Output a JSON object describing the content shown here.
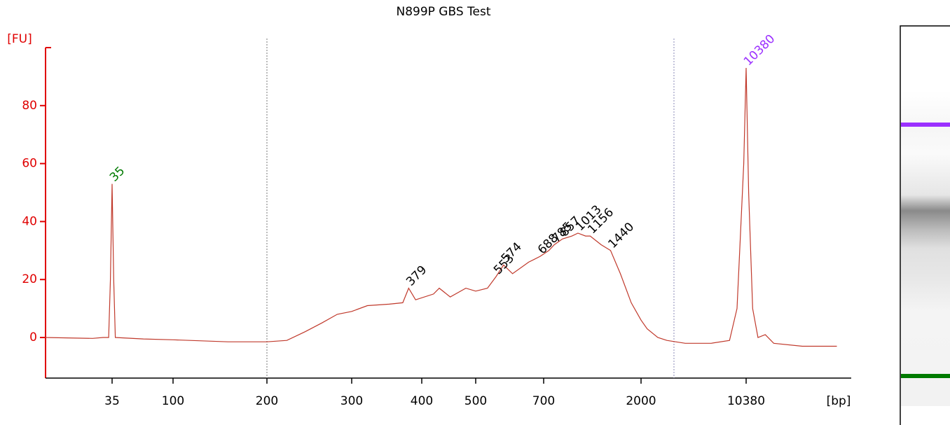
{
  "chart_data": {
    "type": "line",
    "title": "N899P GBS Test",
    "y_label": "[FU]",
    "x_label": "[bp]",
    "log_x": true,
    "color": "#c0392b",
    "axis_color": "#e00000",
    "xlim": [
      11,
      43000
    ],
    "ylim": [
      -14,
      100
    ],
    "xticks": [
      35,
      100,
      200,
      300,
      400,
      500,
      700,
      2000,
      10380
    ],
    "yticks": [
      0,
      20,
      40,
      60,
      80
    ],
    "region": [
      200,
      3350
    ],
    "x": [
      11,
      25,
      30,
      33,
      34,
      35,
      36,
      37,
      60,
      100,
      150,
      200,
      220,
      240,
      260,
      280,
      300,
      320,
      350,
      370,
      379,
      390,
      420,
      430,
      450,
      480,
      500,
      530,
      553,
      574,
      600,
      650,
      688,
      740,
      785,
      857,
      950,
      1013,
      1100,
      1156,
      1300,
      1440,
      1600,
      1800,
      2000,
      2200,
      2600,
      3000,
      4000,
      6000,
      8000,
      9000,
      10000,
      10380,
      10800,
      11500,
      12500,
      14000,
      16000,
      25000,
      43000
    ],
    "values": [
      0,
      -0.3,
      0,
      0,
      20,
      53,
      20,
      0,
      -0.5,
      -0.8,
      -1.5,
      -1.5,
      -1,
      2,
      5,
      8,
      9,
      11,
      11.5,
      12,
      17,
      13,
      15,
      17,
      14,
      17,
      16,
      17,
      21,
      25,
      22,
      26,
      28,
      30,
      32,
      34,
      35,
      36,
      35,
      35,
      32,
      30,
      22,
      12,
      6,
      3,
      0,
      -1,
      -2,
      -2,
      -1,
      10,
      60,
      93,
      50,
      10,
      0,
      1,
      -2,
      -3,
      -3
    ],
    "peaks": {
      "x": [
        35,
        379,
        553,
        574,
        688,
        785,
        857,
        1013,
        1156,
        1440,
        10380
      ],
      "values": [
        53,
        17,
        21,
        25,
        28,
        32,
        34,
        36,
        35,
        30,
        93
      ],
      "colors": [
        "#007a00",
        "#000000",
        "#000000",
        "#000000",
        "#000000",
        "#000000",
        "#000000",
        "#000000",
        "#000000",
        "#000000",
        "#9b30ff"
      ]
    }
  }
}
